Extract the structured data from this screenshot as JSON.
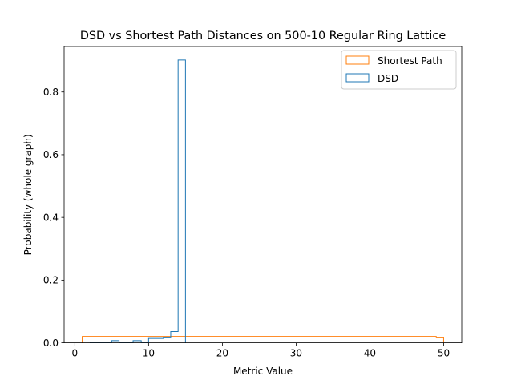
{
  "chart_data": {
    "type": "histogram-step",
    "title": "DSD vs Shortest Path Distances on 500-10 Regular Ring Lattice",
    "xlabel": "Metric Value",
    "ylabel": "Probability (whole graph)",
    "xlim": [
      -1.45,
      52.45
    ],
    "ylim": [
      0,
      0.945
    ],
    "xticks": [
      0,
      10,
      20,
      30,
      40,
      50
    ],
    "xtick_labels": [
      "0",
      "10",
      "20",
      "30",
      "40",
      "50"
    ],
    "yticks": [
      0.0,
      0.2,
      0.4,
      0.6,
      0.8
    ],
    "ytick_labels": [
      "0.0",
      "0.2",
      "0.4",
      "0.6",
      "0.8"
    ],
    "grid": false,
    "legend_position": "top-right",
    "legend": [
      "Shortest Path",
      "DSD"
    ],
    "colors": {
      "shortest_path": "#ff7f0e",
      "dsd": "#1f77b4"
    },
    "series": [
      {
        "name": "Shortest Path",
        "color": "#ff7f0e",
        "edges": [
          1,
          49,
          50
        ],
        "values": [
          0.0205,
          0.016
        ]
      },
      {
        "name": "DSD",
        "color": "#1f77b4",
        "edges": [
          2.1,
          5,
          6,
          7.9,
          9,
          10,
          12,
          13,
          14,
          15
        ],
        "values": [
          0.002,
          0.007,
          0.002,
          0.007,
          0.002,
          0.014,
          0.016,
          0.036,
          0.902
        ]
      }
    ]
  }
}
